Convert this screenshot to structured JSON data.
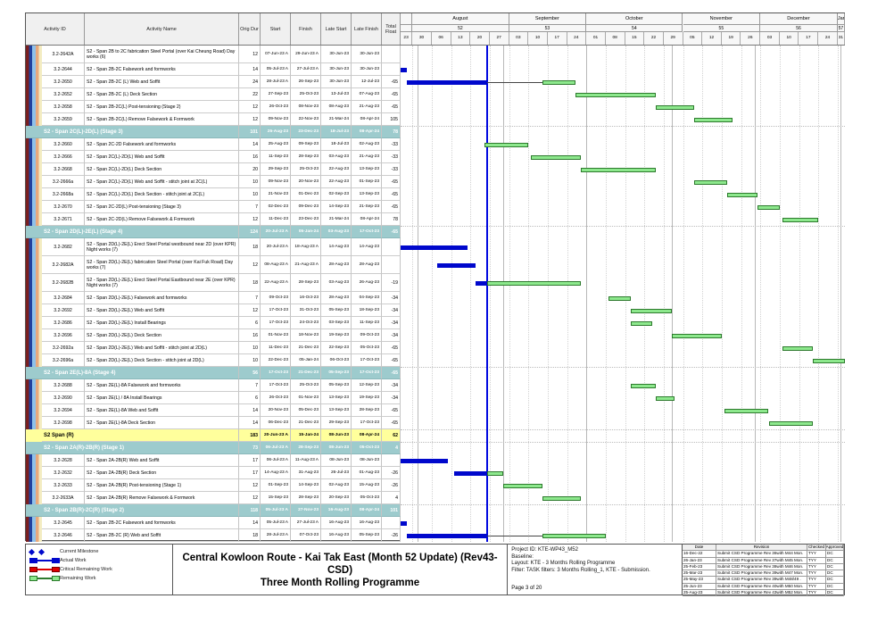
{
  "title_block": {
    "line1": "Central Kowloon Route - Kai Tak East (Month 52 Update) (Rev43- CSD)",
    "line2": "Three Month Rolling Programme"
  },
  "info_block": {
    "project_id": "Project ID: KTE-WP43_M52",
    "baseline": "Baseline:",
    "layout": "Layout: KTE - 3 Months Rolling Programme",
    "filter": "Filter: TASK filters: 3 Months Rolling_1, KTE - Submission.",
    "page": "Page 3 of 20"
  },
  "legend": [
    {
      "kind": "milestone",
      "label": "Current Milestone"
    },
    {
      "kind": "actual",
      "label": "Actual Work"
    },
    {
      "kind": "critical",
      "label": "Critical Remaining Work"
    },
    {
      "kind": "remaining",
      "label": "Remaining Work"
    }
  ],
  "revision_table": {
    "headers": [
      "Date",
      "Revision",
      "Checked",
      "Approved"
    ],
    "rows": [
      [
        "16-Dec-22",
        "Submit CSD Programme Rev 36with M44 Mon.",
        "TYY",
        "DC"
      ],
      [
        "26-Jan-23",
        "Submit CSD Programme Rev 37with M45 Mon.",
        "TYY",
        "DC"
      ],
      [
        "25-Feb-23",
        "Submit CSD Programme Rev 38with M46 Mon.",
        "TYY",
        "DC"
      ],
      [
        "25-Mar-23",
        "Submit CSD Programme Rev 39with M47 Mon.",
        "TYY",
        "DC"
      ],
      [
        "25-May-23",
        "Submit CSD Programme Rev 39with M48/49 .",
        "TYY",
        "DC"
      ],
      [
        "25-Jun-23",
        "Submit CSD Programme Rev 40with M50 Mon.",
        "TYY",
        "DC"
      ],
      [
        "25-Aug-23",
        "Submit CSD Programme Rev 43with M52 Mon.",
        "TYY",
        "DC"
      ]
    ]
  },
  "table_columns": [
    "Activity ID",
    "Activity Name",
    "Orig Dur",
    "Start",
    "Finish",
    "Late Start",
    "Late Finish",
    "Total Float"
  ],
  "chart_data": {
    "type": "table",
    "subtype": "gantt",
    "data_date": "25-Aug-23",
    "window_start": "23-Jul-23",
    "window_end": "02-Jan-24",
    "timeline_months": [
      {
        "label": "",
        "week": "",
        "days": [
          "23"
        ]
      },
      {
        "label": "August",
        "week": "52",
        "days": [
          "30",
          "06",
          "13",
          "20",
          "27"
        ]
      },
      {
        "label": "September",
        "week": "53",
        "days": [
          "03",
          "10",
          "17",
          "24"
        ]
      },
      {
        "label": "October",
        "week": "54",
        "days": [
          "01",
          "08",
          "15",
          "22",
          "29"
        ]
      },
      {
        "label": "November",
        "week": "55",
        "days": [
          "05",
          "12",
          "19",
          "26"
        ]
      },
      {
        "label": "December",
        "week": "56",
        "days": [
          "03",
          "10",
          "17",
          "24"
        ]
      },
      {
        "label": "Jan",
        "week": "57",
        "days": [
          "31"
        ]
      }
    ],
    "colors": {
      "actual": "#0008cc",
      "remaining": "#8de88d",
      "critical": "#dd0000",
      "data_date_line": "#0008e0",
      "group_band": "#9dcbcd",
      "grand_band": "#ffff9c"
    },
    "rows": [
      {
        "type": "task",
        "lines": 2,
        "id": "3.2-2642A",
        "name": "S2 - Span 2B to 2C fabrication Steel Portal (over Kai Cheung Road) Day works (6)",
        "dur": "12",
        "start": "07-Jun-23 A",
        "finish": "29-Jun-23 A",
        "late_start": "30-Jun-23",
        "late_finish": "30-Jun-23",
        "float": ""
      },
      {
        "type": "task",
        "lines": 1,
        "id": "3.2-2644",
        "name": "S2 - Span 2B-2C Falsework and formworks",
        "dur": "14",
        "start": "05-Jul-23 A",
        "finish": "27-Jul-23 A",
        "late_start": "30-Jun-23",
        "late_finish": "30-Jun-23",
        "float": ""
      },
      {
        "type": "task",
        "lines": 1,
        "id": "3.2-2650",
        "name": "S2 - Span 2B-2C (L) Web and Soffit",
        "dur": "24",
        "start": "28-Jul-23 A",
        "finish": "26-Sep-23",
        "late_start": "30-Jun-23",
        "late_finish": "12-Jul-23",
        "float": "-65",
        "green_start": "15-Sep-23"
      },
      {
        "type": "task",
        "lines": 1,
        "id": "3.2-2652",
        "name": "S2 - Span 2B-2C (L) Deck Section",
        "dur": "22",
        "start": "27-Sep-23",
        "finish": "25-Oct-23",
        "late_start": "13-Jul-23",
        "late_finish": "07-Aug-23",
        "float": "-65"
      },
      {
        "type": "task",
        "lines": 1,
        "id": "3.2-2658",
        "name": "S2 - Span 2B-2C(L) Post-tensioning (Stage 2)",
        "dur": "12",
        "start": "26-Oct-23",
        "finish": "08-Nov-23",
        "late_start": "08-Aug-23",
        "late_finish": "21-Aug-23",
        "float": "-65"
      },
      {
        "type": "task",
        "lines": 1,
        "id": "3.2-2659",
        "name": "S2 - Span 2B-2C(L) Remove Falsework & Formwork",
        "dur": "12",
        "start": "09-Nov-23",
        "finish": "22-Nov-23",
        "late_start": "21-Mar-24",
        "late_finish": "08-Apr-24",
        "float": "105"
      },
      {
        "type": "group",
        "lines": 1,
        "id": "",
        "name": "S2 - Span 2C(L)-2D(L) (Stage 3)",
        "dur": "101",
        "start": "25-Aug-23",
        "finish": "23-Dec-23",
        "late_start": "18-Jul-23",
        "late_finish": "08-Apr-24",
        "float": "78"
      },
      {
        "type": "task",
        "lines": 1,
        "id": "3.2-2660",
        "name": "S2 - Span 2C-2D Falsework and formworks",
        "dur": "14",
        "start": "25-Aug-23",
        "finish": "09-Sep-23",
        "late_start": "18-Jul-23",
        "late_finish": "02-Aug-23",
        "float": "-33"
      },
      {
        "type": "task",
        "lines": 1,
        "id": "3.2-2666",
        "name": "S2 - Span 2C(L)-2D(L) Web and Soffit",
        "dur": "16",
        "start": "11-Sep-23",
        "finish": "28-Sep-23",
        "late_start": "03-Aug-23",
        "late_finish": "21-Aug-23",
        "float": "-33"
      },
      {
        "type": "task",
        "lines": 1,
        "id": "3.2-2668",
        "name": "S2 - Span 2C(L)-2D(L) Deck Section",
        "dur": "20",
        "start": "29-Sep-23",
        "finish": "25-Oct-23",
        "late_start": "22-Aug-23",
        "late_finish": "13-Sep-23",
        "float": "-33"
      },
      {
        "type": "task",
        "lines": 1,
        "id": "3.2-2666a",
        "name": "S2 - Span 2C(L)-2D(L) Web and Soffit - stitch joint at 2C(L)",
        "dur": "10",
        "start": "09-Nov-23",
        "finish": "20-Nov-23",
        "late_start": "22-Aug-23",
        "late_finish": "01-Sep-23",
        "float": "-65"
      },
      {
        "type": "task",
        "lines": 1,
        "id": "3.2-2668a",
        "name": "S2 - Span 2C(L)-2D(L) Deck Section - stitch joint at 2C(L)",
        "dur": "10",
        "start": "21-Nov-23",
        "finish": "01-Dec-23",
        "late_start": "02-Sep-23",
        "late_finish": "13-Sep-23",
        "float": "-65"
      },
      {
        "type": "task",
        "lines": 1,
        "id": "3.2-2670",
        "name": "S2 - Span 2C-2D(L) Post-tensioning (Stage 3)",
        "dur": "7",
        "start": "02-Dec-23",
        "finish": "09-Dec-23",
        "late_start": "14-Sep-23",
        "late_finish": "21-Sep-23",
        "float": "-65"
      },
      {
        "type": "task",
        "lines": 1,
        "id": "3.2-2671",
        "name": "S2 - Span 2C-2D(L) Remove Falsework & Formwork",
        "dur": "12",
        "start": "11-Dec-23",
        "finish": "23-Dec-23",
        "late_start": "21-Mar-24",
        "late_finish": "08-Apr-24",
        "float": "78"
      },
      {
        "type": "group",
        "lines": 1,
        "id": "",
        "name": "S2 - Span 2D(L)-2E(L) (Stage 4)",
        "dur": "124",
        "start": "20-Jul-23 A",
        "finish": "05-Jan-24",
        "late_start": "03-Aug-23",
        "late_finish": "17-Oct-23",
        "float": "-65"
      },
      {
        "type": "task",
        "lines": 2,
        "id": "3.2-2682",
        "name": "S2 - Span 2D(L)-2E(L) Erect Steel Portal westbound near 2D (over KPR) Night works (7)",
        "dur": "18",
        "start": "20-Jul-23 A",
        "finish": "18-Aug-23 A",
        "late_start": "14-Aug-23",
        "late_finish": "14-Aug-23",
        "float": ""
      },
      {
        "type": "task",
        "lines": 2,
        "id": "3.2-2682A",
        "name": "S2 - Span 2D(L)-2E(L) fabrication Steel Portal (over Kai Fuk Road) Day works (7)",
        "dur": "12",
        "start": "08-Aug-23 A",
        "finish": "21-Aug-23 A",
        "late_start": "28-Aug-23",
        "late_finish": "28-Aug-23",
        "float": ""
      },
      {
        "type": "task",
        "lines": 2,
        "id": "3.2-2682B",
        "name": "S2 - Span 2D(L)-2E(L) Erect Steel Portal Eastbound near 2E (over KPR) Night works (7)",
        "dur": "18",
        "start": "22-Aug-23 A",
        "finish": "28-Sep-23",
        "late_start": "03-Aug-23",
        "late_finish": "26-Aug-23",
        "float": "-19"
      },
      {
        "type": "task",
        "lines": 1,
        "id": "3.2-2684",
        "name": "S2 - Span 2D(L)-2E(L) Falsework and formworks",
        "dur": "7",
        "start": "09-Oct-23",
        "finish": "16-Oct-23",
        "late_start": "28-Aug-23",
        "late_finish": "04-Sep-23",
        "float": "-34"
      },
      {
        "type": "task",
        "lines": 1,
        "id": "3.2-2692",
        "name": "S2 - Span 2D(L)-2E(L) Web and Soffit",
        "dur": "12",
        "start": "17-Oct-23",
        "finish": "31-Oct-23",
        "late_start": "05-Sep-23",
        "late_finish": "18-Sep-23",
        "float": "-34"
      },
      {
        "type": "task",
        "lines": 1,
        "id": "3.2-2686",
        "name": "S2 - Span 2D(L)-2E(L) Install Bearings",
        "dur": "6",
        "start": "17-Oct-23",
        "finish": "24-Oct-23",
        "late_start": "03-Sep-23",
        "late_finish": "11-Sep-23",
        "float": "-34"
      },
      {
        "type": "task",
        "lines": 1,
        "id": "3.2-2696",
        "name": "S2 - Span 2D(L)-2E(L) Deck Section",
        "dur": "16",
        "start": "01-Nov-23",
        "finish": "18-Nov-23",
        "late_start": "19-Sep-23",
        "late_finish": "09-Oct-23",
        "float": "-34"
      },
      {
        "type": "task",
        "lines": 1,
        "id": "3.2-2692a",
        "name": "S2 - Span 2D(L)-2E(L) Web and Soffit - stitch joint at 2D(L)",
        "dur": "10",
        "start": "11-Dec-23",
        "finish": "21-Dec-23",
        "late_start": "22-Sep-23",
        "late_finish": "05-Oct-23",
        "float": "-65"
      },
      {
        "type": "task",
        "lines": 1,
        "id": "3.2-2696a",
        "name": "S2 - Span 2D(L)-2E(L) Deck Section - stitch joint at 2D(L)",
        "dur": "10",
        "start": "22-Dec-23",
        "finish": "05-Jan-24",
        "late_start": "06-Oct-23",
        "late_finish": "17-Oct-23",
        "float": "-65"
      },
      {
        "type": "group",
        "lines": 1,
        "id": "",
        "name": "S2 - Span 2E(L)-8A (Stage 4)",
        "dur": "56",
        "start": "17-Oct-23",
        "finish": "21-Dec-23",
        "late_start": "05-Sep-23",
        "late_finish": "17-Oct-23",
        "float": "-65"
      },
      {
        "type": "task",
        "lines": 1,
        "id": "3.2-2688",
        "name": "S2 - Span 2E(L)-8A Falsework and formworks",
        "dur": "7",
        "start": "17-Oct-23",
        "finish": "25-Oct-23",
        "late_start": "05-Sep-23",
        "late_finish": "12-Sep-23",
        "float": "-34"
      },
      {
        "type": "task",
        "lines": 1,
        "id": "3.2-2690",
        "name": "S2 - Span 2E(L) / 8A Install Bearings",
        "dur": "6",
        "start": "26-Oct-23",
        "finish": "01-Nov-23",
        "late_start": "13-Sep-23",
        "late_finish": "19-Sep-23",
        "float": "-34"
      },
      {
        "type": "task",
        "lines": 1,
        "id": "3.2-2694",
        "name": "S2 - Span 2E(L)-8A Web and Soffit",
        "dur": "14",
        "start": "20-Nov-23",
        "finish": "05-Dec-23",
        "late_start": "13-Sep-23",
        "late_finish": "28-Sep-23",
        "float": "-65"
      },
      {
        "type": "task",
        "lines": 1,
        "id": "3.2-2698",
        "name": "S2 - Span 2E(L)-8A Deck Section",
        "dur": "14",
        "start": "06-Dec-23",
        "finish": "21-Dec-23",
        "late_start": "29-Sep-23",
        "late_finish": "17-Oct-23",
        "float": "-65"
      },
      {
        "type": "grand",
        "lines": 1,
        "id": "",
        "name": "S2 Span (R)",
        "dur": "183",
        "start": "20-Jun-23 A",
        "finish": "15-Jan-24",
        "late_start": "08-Jun-23",
        "late_finish": "08-Apr-24",
        "float": "62"
      },
      {
        "type": "group",
        "lines": 1,
        "id": "",
        "name": "S2 - Span 2A(R)-2B(R) (Stage 1)",
        "dur": "73",
        "start": "06-Jul-23 A",
        "finish": "28-Sep-23",
        "late_start": "08-Jun-23",
        "late_finish": "05-Oct-23",
        "float": "4"
      },
      {
        "type": "task",
        "lines": 1,
        "id": "3.2-2628",
        "name": "S2 - Span 2A-2B(R) Web and Soffit",
        "dur": "17",
        "start": "06-Jul-23 A",
        "finish": "11-Aug-23 A",
        "late_start": "08-Jun-23",
        "late_finish": "08-Jun-23",
        "float": ""
      },
      {
        "type": "task",
        "lines": 1,
        "id": "3.2-2632",
        "name": "S2 - Span 2A-2B(R) Deck Section",
        "dur": "17",
        "start": "14-Aug-23 A",
        "finish": "31-Aug-23",
        "late_start": "26-Jul-23",
        "late_finish": "01-Aug-23",
        "float": "-26"
      },
      {
        "type": "task",
        "lines": 1,
        "id": "3.2-2633",
        "name": "S2 - Span 2A-2B(R) Post-tensioning (Stage 1)",
        "dur": "12",
        "start": "01-Sep-23",
        "finish": "14-Sep-23",
        "late_start": "02-Aug-23",
        "late_finish": "15-Aug-23",
        "float": "-26"
      },
      {
        "type": "task",
        "lines": 1,
        "id": "3.2-2633A",
        "name": "S2 - Span 2A-2B(R) Remove Falsework & Formwork",
        "dur": "12",
        "start": "15-Sep-23",
        "finish": "28-Sep-23",
        "late_start": "20-Sep-23",
        "late_finish": "05-Oct-23",
        "float": "4"
      },
      {
        "type": "group",
        "lines": 1,
        "id": "",
        "name": "S2 - Span 2B(R)-2C(R) (Stage 2)",
        "dur": "118",
        "start": "05-Jul-23 A",
        "finish": "27-Nov-23",
        "late_start": "16-Aug-23",
        "late_finish": "08-Apr-24",
        "float": "101"
      },
      {
        "type": "task",
        "lines": 1,
        "id": "3.2-2645",
        "name": "S2 - Span 2B-2C Falsework and formworks",
        "dur": "14",
        "start": "05-Jul-23 A",
        "finish": "27-Jul-23 A",
        "late_start": "16-Aug-23",
        "late_finish": "16-Aug-23",
        "float": ""
      },
      {
        "type": "task",
        "lines": 1,
        "id": "3.2-2646",
        "name": "S2 - Span 2B-2C (R) Web and Soffit",
        "dur": "18",
        "start": "28-Jul-23 A",
        "finish": "07-Oct-23",
        "late_start": "16-Aug-23",
        "late_finish": "05-Sep-23",
        "float": "-26",
        "green_start": "15-Sep-23"
      }
    ]
  }
}
